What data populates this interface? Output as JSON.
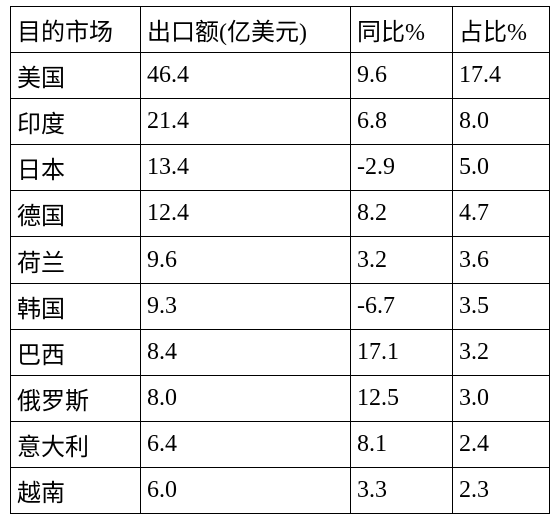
{
  "table": {
    "header": [
      "目的市场",
      "出口额(亿美元)",
      "同比%",
      "占比%"
    ],
    "rows": [
      [
        "美国",
        "46.4",
        "9.6",
        "17.4"
      ],
      [
        "印度",
        "21.4",
        "6.8",
        "8.0"
      ],
      [
        "日本",
        "13.4",
        "-2.9",
        "5.0"
      ],
      [
        "德国",
        "12.4",
        "8.2",
        "4.7"
      ],
      [
        "荷兰",
        "9.6",
        "3.2",
        "3.6"
      ],
      [
        "韩国",
        "9.3",
        "-6.7",
        "3.5"
      ],
      [
        "巴西",
        "8.4",
        "17.1",
        "3.2"
      ],
      [
        "俄罗斯",
        "8.0",
        "12.5",
        "3.0"
      ],
      [
        "意大利",
        "6.4",
        "8.1",
        "2.4"
      ],
      [
        "越南",
        "6.0",
        "3.3",
        "2.3"
      ]
    ]
  }
}
